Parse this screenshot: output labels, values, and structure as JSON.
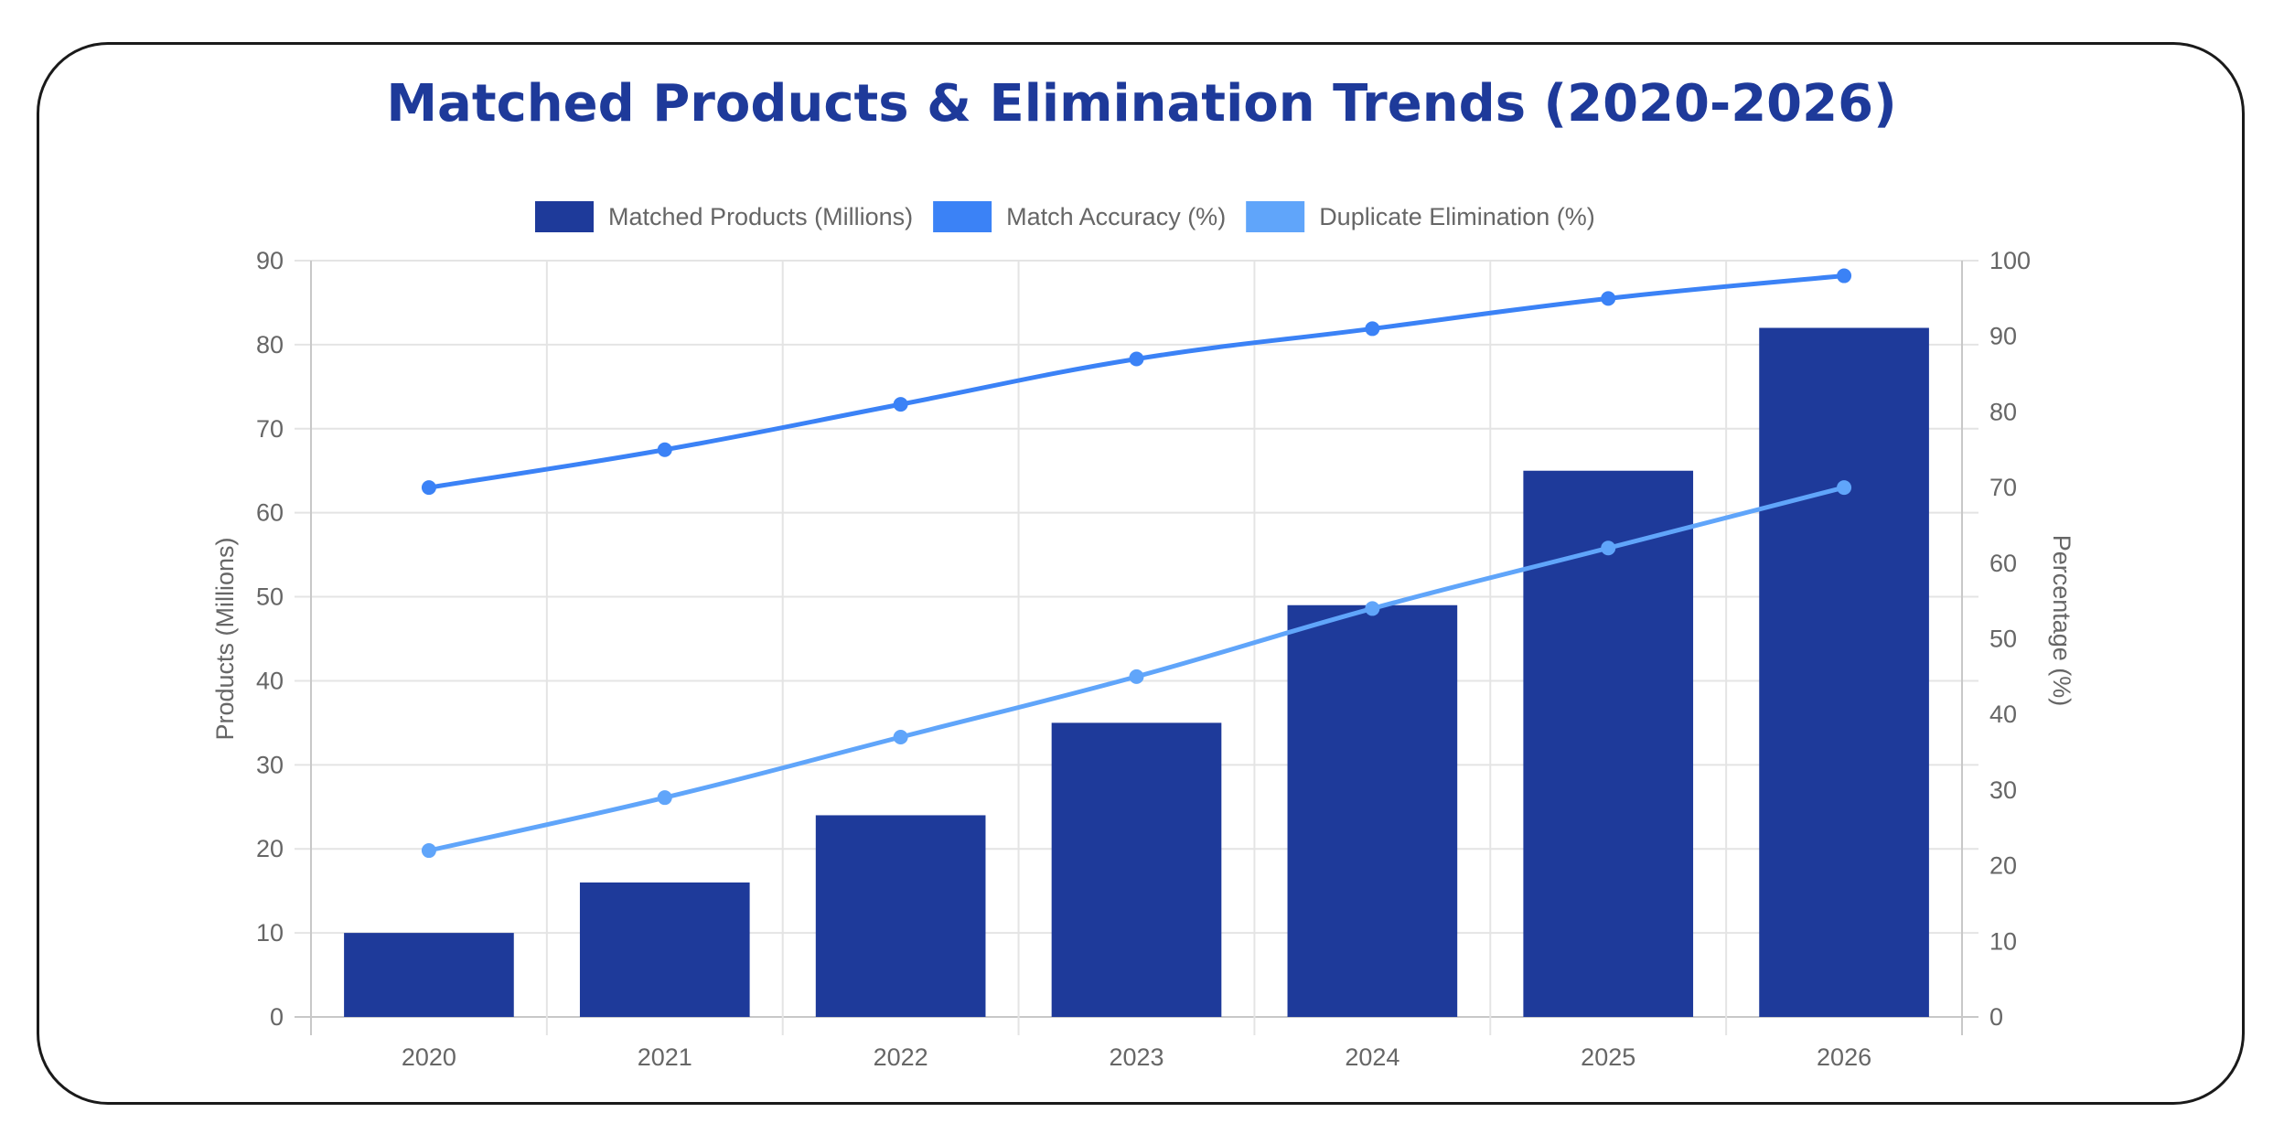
{
  "chart_data": {
    "type": "bar",
    "title": "Matched Products & Elimination Trends (2020-2026)",
    "categories": [
      "2020",
      "2021",
      "2022",
      "2023",
      "2024",
      "2025",
      "2026"
    ],
    "series": [
      {
        "name": "Matched Products (Millions)",
        "type": "bar",
        "axis": "left",
        "color": "#1e3a9a",
        "values": [
          10,
          16,
          24,
          35,
          49,
          65,
          82
        ]
      },
      {
        "name": "Match Accuracy (%)",
        "type": "line",
        "axis": "right",
        "color": "#3b82f6",
        "values": [
          70,
          75,
          81,
          87,
          91,
          95,
          98
        ]
      },
      {
        "name": "Duplicate Elimination (%)",
        "type": "line",
        "axis": "right",
        "color": "#60a5fa",
        "values": [
          22,
          29,
          37,
          45,
          54,
          62,
          70
        ]
      }
    ],
    "ylabel": "Products (Millions)",
    "ylim": [
      0,
      90
    ],
    "yticks": [
      0,
      10,
      20,
      30,
      40,
      50,
      60,
      70,
      80,
      90
    ],
    "y2label": "Percentage (%)",
    "y2lim": [
      0,
      100
    ],
    "y2ticks": [
      0,
      10,
      20,
      30,
      40,
      50,
      60,
      70,
      80,
      90,
      100
    ],
    "grid": true,
    "legend_position": "top"
  }
}
